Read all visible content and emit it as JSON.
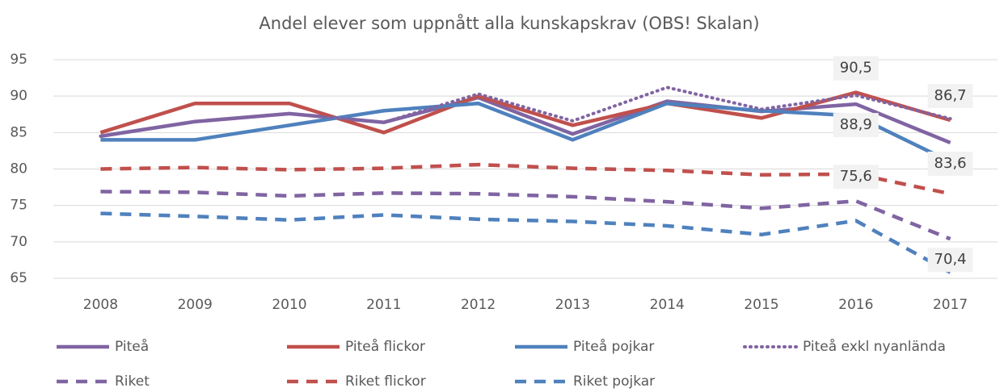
{
  "chart_data": {
    "type": "line",
    "title": "Andel elever som uppnått alla kunskapskrav (OBS! Skalan)",
    "categories": [
      "2008",
      "2009",
      "2010",
      "2011",
      "2012",
      "2013",
      "2014",
      "2015",
      "2016",
      "2017"
    ],
    "ylim": [
      65,
      95
    ],
    "yticks": [
      65,
      70,
      75,
      80,
      85,
      90,
      95
    ],
    "grid": true,
    "series": [
      {
        "name": "Piteå",
        "color": "#8064a2",
        "dash": "solid",
        "values": [
          84.5,
          86.5,
          87.6,
          86.4,
          89.8,
          84.8,
          89.3,
          87.9,
          88.9,
          83.6
        ],
        "value_labels": [
          null,
          null,
          null,
          null,
          null,
          null,
          null,
          null,
          "88,9",
          "83,6"
        ]
      },
      {
        "name": "Piteå flickor",
        "color": "#c0504d",
        "dash": "solid",
        "values": [
          85,
          89,
          89,
          85,
          90,
          86,
          89,
          87,
          90.5,
          86.7
        ],
        "value_labels": [
          null,
          null,
          null,
          null,
          null,
          null,
          null,
          null,
          "90,5",
          "86,7"
        ]
      },
      {
        "name": "Piteå pojkar",
        "color": "#4f81bd",
        "dash": "solid",
        "values": [
          84,
          84,
          86,
          88,
          89,
          84,
          89,
          88,
          87.3,
          81
        ]
      },
      {
        "name": "Piteå exkl nyanlända",
        "color": "#8064a2",
        "dash": "dotted",
        "values": [
          84.5,
          86.5,
          87.6,
          86.4,
          90.3,
          86.6,
          91.2,
          88.2,
          90.1,
          86.9
        ]
      },
      {
        "name": "Riket",
        "color": "#8064a2",
        "dash": "dashed",
        "values": [
          76.9,
          76.8,
          76.3,
          76.7,
          76.6,
          76.2,
          75.5,
          74.6,
          75.6,
          70.4
        ],
        "value_labels": [
          null,
          null,
          null,
          null,
          null,
          null,
          null,
          null,
          "75,6",
          "70,4"
        ]
      },
      {
        "name": "Riket flickor",
        "color": "#c0504d",
        "dash": "dashed",
        "values": [
          80,
          80.2,
          79.9,
          80.1,
          80.6,
          80.1,
          79.8,
          79.2,
          79.3,
          76.6
        ]
      },
      {
        "name": "Riket pojkar",
        "color": "#4f81bd",
        "dash": "dashed",
        "values": [
          73.9,
          73.5,
          73,
          73.7,
          73.1,
          72.8,
          72.2,
          71,
          72.9,
          65.8
        ]
      }
    ]
  }
}
